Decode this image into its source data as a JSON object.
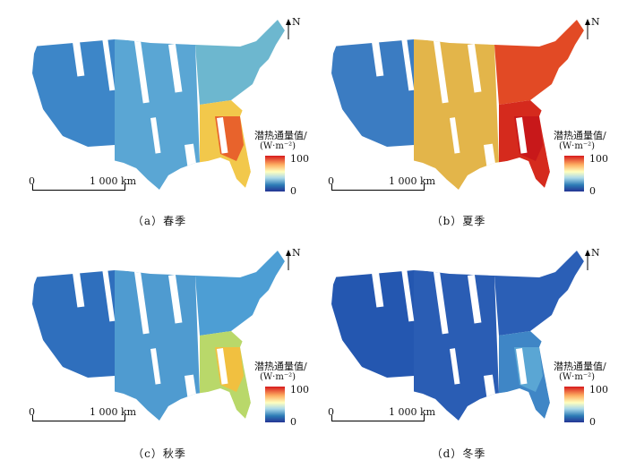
{
  "panels": [
    {
      "caption": "（a）春季",
      "season": "spring",
      "legend_title": "潜热通量值/",
      "legend_unit": "(W·m⁻²)",
      "legend_max": "100",
      "legend_min": "0",
      "scale_zero": "0",
      "scale_label": "1 000 km",
      "north": "N",
      "colors": {
        "west": "#3d86c8",
        "mid": "#5aa6d4",
        "southeast": "#f2c84b",
        "northeast": "#6db7cf",
        "hot": "#e8632c"
      }
    },
    {
      "caption": "（b）夏季",
      "season": "summer",
      "legend_title": "潜热通量值/",
      "legend_unit": "(W·m⁻²)",
      "legend_max": "100",
      "legend_min": "0",
      "scale_zero": "0",
      "scale_label": "1 000 km",
      "north": "N",
      "colors": {
        "west": "#3b7cc2",
        "mid": "#e3b54a",
        "southeast": "#d52a1d",
        "northeast": "#e24a25",
        "hot": "#c8181a"
      }
    },
    {
      "caption": "（c）秋季",
      "season": "autumn",
      "legend_title": "潜热通量值/",
      "legend_unit": "(W·m⁻²)",
      "legend_max": "100",
      "legend_min": "0",
      "scale_zero": "0",
      "scale_label": "1 000 km",
      "north": "N",
      "colors": {
        "west": "#2f6fbd",
        "mid": "#4f9bd0",
        "southeast": "#b9d86a",
        "northeast": "#4d9ed4",
        "hot": "#f1c040"
      }
    },
    {
      "caption": "（d）冬季",
      "season": "winter",
      "legend_title": "潜热通量值/",
      "legend_unit": "(W·m⁻²)",
      "legend_max": "100",
      "legend_min": "0",
      "scale_zero": "0",
      "scale_label": "1 000 km",
      "north": "N",
      "colors": {
        "west": "#2457b0",
        "mid": "#2a5db4",
        "southeast": "#3f86c6",
        "northeast": "#2b5fb6",
        "hot": "#5aa6d4"
      }
    }
  ]
}
